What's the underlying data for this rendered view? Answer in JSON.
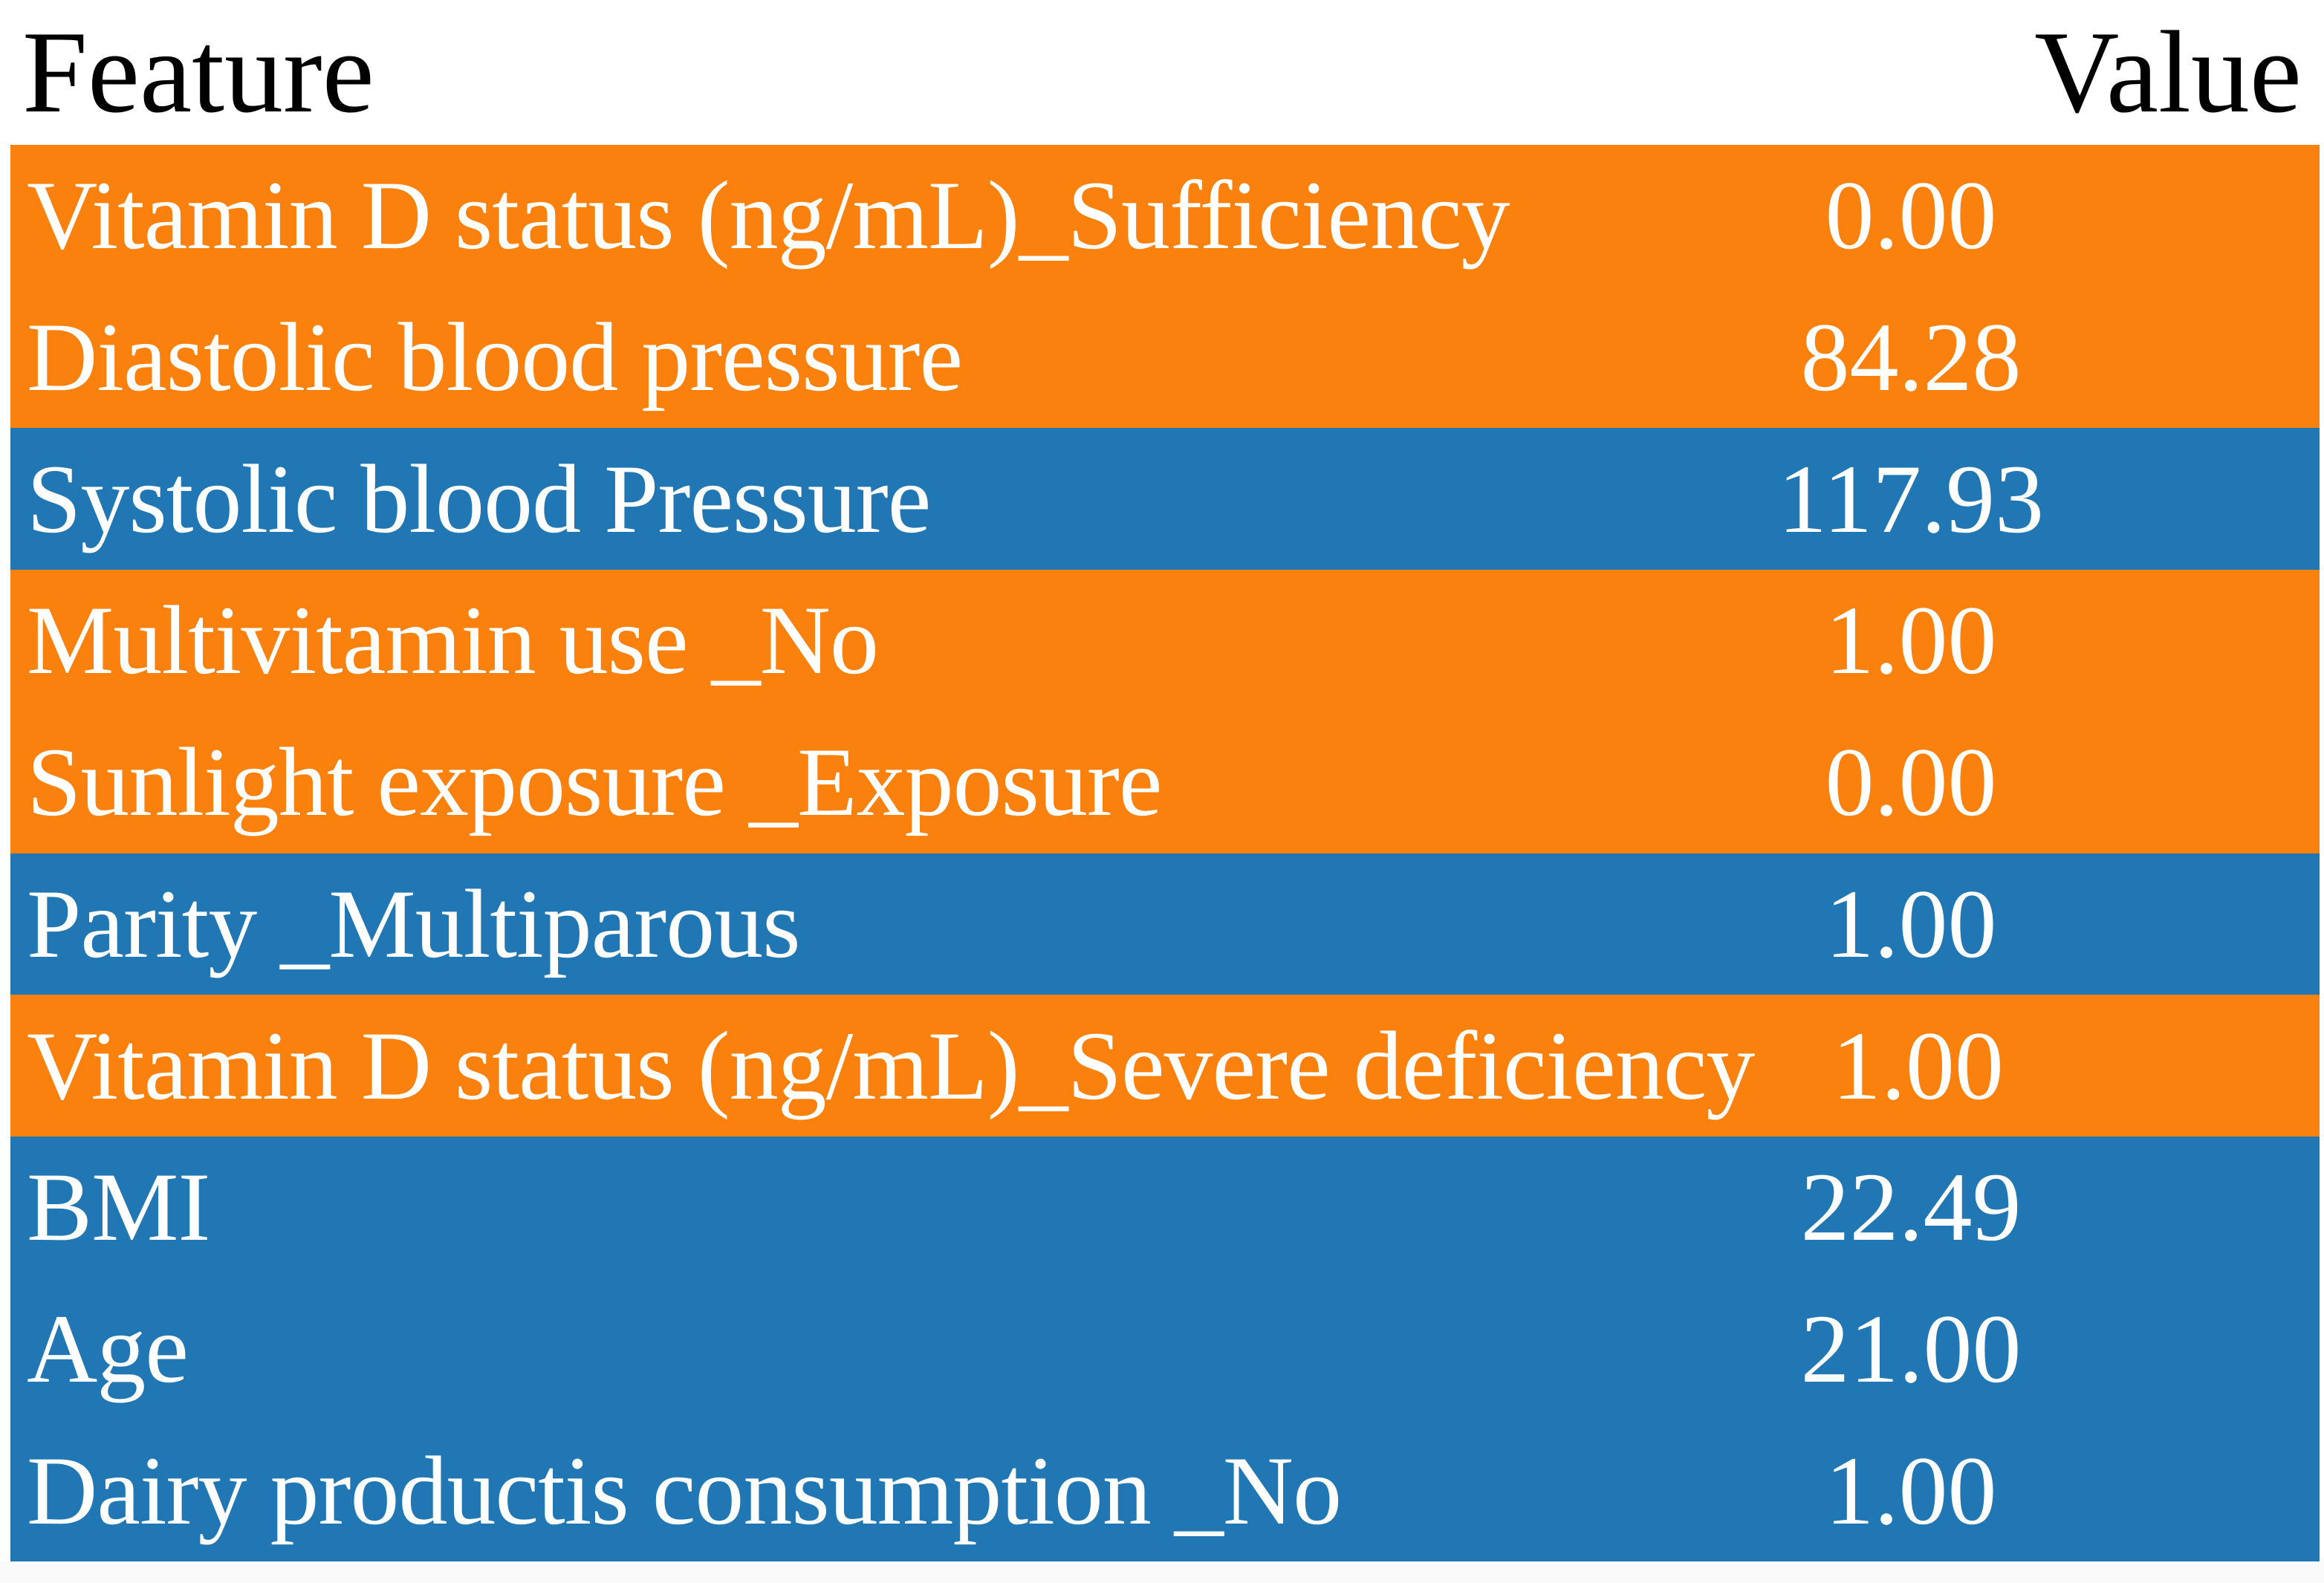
{
  "table": {
    "columns": [
      "Feature",
      "Value"
    ],
    "rows": [
      {
        "feature": "Vitamin D status (ng/mL)_Sufficiency",
        "value": "0.00",
        "color_name": "orange",
        "bg": "#fa810e"
      },
      {
        "feature": "Diastolic blood pressure",
        "value": "84.28",
        "color_name": "orange",
        "bg": "#fa810e"
      },
      {
        "feature": "Systolic blood Pressure",
        "value": "117.93",
        "color_name": "blue",
        "bg": "#2077b4"
      },
      {
        "feature": "Multivitamin use _No",
        "value": "1.00",
        "color_name": "orange",
        "bg": "#fa810e"
      },
      {
        "feature": "Sunlight exposure _Exposure",
        "value": "0.00",
        "color_name": "orange",
        "bg": "#fa810e"
      },
      {
        "feature": "Parity _Multiparous",
        "value": "1.00",
        "color_name": "blue",
        "bg": "#2077b4"
      },
      {
        "feature": "Vitamin D status (ng/mL)_Severe deficiency",
        "value": "1.00",
        "color_name": "orange",
        "bg": "#fa810e"
      },
      {
        "feature": "BMI",
        "value": "22.49",
        "color_name": "blue",
        "bg": "#2077b4"
      },
      {
        "feature": "Age",
        "value": "21.00",
        "color_name": "blue",
        "bg": "#2077b4"
      },
      {
        "feature": "Dairy productis consumption _No",
        "value": "1.00",
        "color_name": "blue",
        "bg": "#2077b4"
      }
    ]
  },
  "colors": {
    "orange_row": "#fa810e",
    "blue_row": "#2077b4",
    "header_text": "#000000",
    "row_text": "#ffffff",
    "background": "#ffffff",
    "bottom_strip": "#fafafa"
  },
  "chart_data": {
    "type": "table",
    "title": "",
    "columns": [
      "Feature",
      "Value"
    ],
    "rows": [
      [
        "Vitamin D status (ng/mL)_Sufficiency",
        0.0
      ],
      [
        "Diastolic blood pressure",
        84.28
      ],
      [
        "Systolic blood Pressure",
        117.93
      ],
      [
        "Multivitamin use _No",
        1.0
      ],
      [
        "Sunlight exposure _Exposure",
        0.0
      ],
      [
        "Parity _Multiparous",
        1.0
      ],
      [
        "Vitamin D status (ng/mL)_Severe deficiency",
        1.0
      ],
      [
        "BMI",
        22.49
      ],
      [
        "Age",
        21.0
      ],
      [
        "Dairy productis consumption _No",
        1.0
      ]
    ],
    "row_colors": [
      "orange",
      "orange",
      "blue",
      "orange",
      "orange",
      "blue",
      "orange",
      "blue",
      "blue",
      "blue"
    ],
    "legend_position": "none",
    "grid": false
  }
}
